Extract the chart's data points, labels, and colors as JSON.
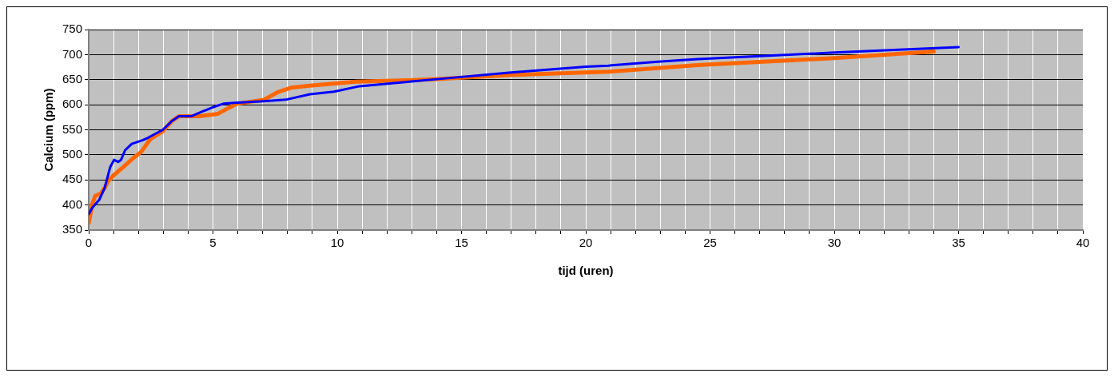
{
  "chart_data": {
    "type": "line",
    "xlabel": "tijd (uren)",
    "ylabel": "Calcium (ppm)",
    "xlim": [
      0,
      40
    ],
    "ylim": [
      350,
      750
    ],
    "xticks": [
      0,
      {
        "value": 1,
        "label": null
      },
      {
        "value": 2,
        "label": null
      },
      {
        "value": 3,
        "label": null
      },
      {
        "value": 4,
        "label": null
      },
      5,
      {
        "value": 6,
        "label": null
      },
      {
        "value": 7,
        "label": null
      },
      {
        "value": 8,
        "label": null
      },
      {
        "value": 9,
        "label": null
      },
      10,
      {
        "value": 11,
        "label": null
      },
      {
        "value": 12,
        "label": null
      },
      {
        "value": 13,
        "label": null
      },
      {
        "value": 14,
        "label": null
      },
      15,
      {
        "value": 16,
        "label": null
      },
      {
        "value": 17,
        "label": null
      },
      {
        "value": 18,
        "label": null
      },
      {
        "value": 19,
        "label": null
      },
      20,
      {
        "value": 21,
        "label": null
      },
      {
        "value": 22,
        "label": null
      },
      {
        "value": 23,
        "label": null
      },
      {
        "value": 24,
        "label": null
      },
      25,
      {
        "value": 26,
        "label": null
      },
      {
        "value": 27,
        "label": null
      },
      {
        "value": 28,
        "label": null
      },
      {
        "value": 29,
        "label": null
      },
      30,
      {
        "value": 31,
        "label": null
      },
      {
        "value": 32,
        "label": null
      },
      {
        "value": 33,
        "label": null
      },
      {
        "value": 34,
        "label": null
      },
      35,
      {
        "value": 36,
        "label": null
      },
      {
        "value": 37,
        "label": null
      },
      {
        "value": 38,
        "label": null
      },
      {
        "value": 39,
        "label": null
      },
      40
    ],
    "yticks": [
      350,
      400,
      450,
      500,
      550,
      600,
      650,
      700,
      750
    ],
    "grid": true,
    "marker": "none",
    "line_style": "solid",
    "series": [
      {
        "color": "#0000ff",
        "x": [
          0,
          0.15,
          0.42,
          0.64,
          0.86,
          1.02,
          1.18,
          1.3,
          1.46,
          1.73,
          2.16,
          2.38,
          2.98,
          3.36,
          3.63,
          4.12,
          4.55,
          4.99,
          5.42,
          5.97,
          7.05,
          7.92,
          8.9,
          9.87,
          10.9,
          12.9,
          14.0,
          16.9,
          20.0,
          20.9,
          22.9,
          24.5,
          27.0,
          30.0,
          35.0
        ],
        "values": [
          382,
          395,
          410,
          434,
          475,
          490,
          486,
          490,
          509,
          522,
          529,
          534,
          550,
          568,
          577,
          577,
          586,
          595,
          602,
          604,
          607,
          610,
          621,
          626,
          637,
          646,
          651,
          664,
          676,
          678,
          686,
          691,
          697,
          704,
          715
        ]
      },
      {
        "color": "#ff6600",
        "x": [
          0,
          0.15,
          0.26,
          0.48,
          0.64,
          0.8,
          1.02,
          1.4,
          1.78,
          2.11,
          2.49,
          2.98,
          3.36,
          3.63,
          4.45,
          5.2,
          5.64,
          5.97,
          7.05,
          7.6,
          8.14,
          8.9,
          10.75,
          12.9,
          14.0,
          16.9,
          20.9,
          24.5,
          30.0,
          34.0
        ],
        "values": [
          364,
          403,
          418,
          423,
          434,
          449,
          460,
          476,
          493,
          506,
          532,
          547,
          568,
          577,
          577,
          582,
          594,
          602,
          610,
          625,
          634,
          638,
          646,
          649,
          651,
          659,
          666,
          679,
          693,
          706
        ]
      }
    ]
  }
}
